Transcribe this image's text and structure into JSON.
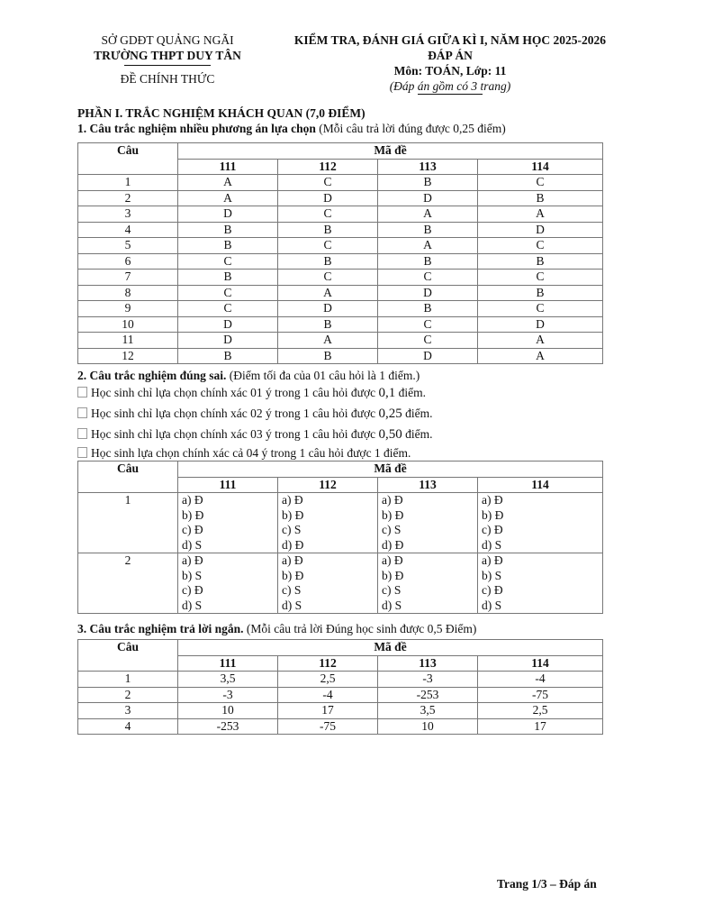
{
  "header": {
    "left": [
      "SỞ GDĐT QUẢNG NGÃI",
      "TRƯỜNG THPT DUY TÂN",
      "ĐỀ CHÍNH THỨC"
    ],
    "right": [
      "KIỂM TRA, ĐÁNH GIÁ GIỮA KÌ I, NĂM HỌC 2025-2026",
      "ĐÁP ÁN",
      "Môn: TOÁN,  Lớp: 11",
      "(Đáp án gồm có 3 trang)"
    ]
  },
  "part1_title": "PHẦN I. TRẮC NGHIỆM KHÁCH QUAN (7,0 ĐIỂM)",
  "section1": {
    "title": "1.  Câu trắc nghiệm nhiều phương án lựa chọn",
    "note": " (Mỗi câu trả lời đúng được 0,25 điểm)"
  },
  "col_cau": "Câu",
  "col_made": "Mã đề",
  "codes": [
    "111",
    "112",
    "113",
    "114"
  ],
  "table1": [
    [
      "1",
      "A",
      "C",
      "B",
      "C"
    ],
    [
      "2",
      "A",
      "D",
      "D",
      "B"
    ],
    [
      "3",
      "D",
      "C",
      "A",
      "A"
    ],
    [
      "4",
      "B",
      "B",
      "B",
      "D"
    ],
    [
      "5",
      "B",
      "C",
      "A",
      "C"
    ],
    [
      "6",
      "C",
      "B",
      "B",
      "B"
    ],
    [
      "7",
      "B",
      "C",
      "C",
      "C"
    ],
    [
      "8",
      "C",
      "A",
      "D",
      "B"
    ],
    [
      "9",
      "C",
      "D",
      "B",
      "C"
    ],
    [
      "10",
      "D",
      "B",
      "C",
      "D"
    ],
    [
      "11",
      "D",
      "A",
      "C",
      "A"
    ],
    [
      "12",
      "B",
      "B",
      "D",
      "A"
    ]
  ],
  "section2": {
    "title": "2.  Câu trắc nghiệm đúng sai.",
    "note": " (Điểm tối đa của 01 câu hỏi là 1 điểm.)",
    "rules": [
      {
        "text": "Học sinh chỉ lựa chọn chính xác 01 ý trong 1 câu hỏi được ",
        "value": "0,1",
        "suffix": " điểm."
      },
      {
        "text": "Học sinh chỉ lựa chọn chính xác 02 ý trong 1 câu hỏi được ",
        "value": "0,25",
        "suffix": " điểm."
      },
      {
        "text": "Học sinh chỉ lựa chọn chính xác 03 ý trong 1 câu hỏi được ",
        "value": "0,50",
        "suffix": " điểm."
      },
      {
        "text": "Học sinh lựa chọn chính xác cả 04 ý trong 1 câu hỏi được 1 điểm.",
        "value": "",
        "suffix": ""
      }
    ]
  },
  "table2": [
    {
      "cau": "1",
      "answers": [
        [
          "a) Đ",
          "b) Đ",
          "c) Đ",
          "d) S"
        ],
        [
          "a) Đ",
          "b) Đ",
          "c) S",
          "d) Đ"
        ],
        [
          "a) Đ",
          "b) Đ",
          "c) S",
          "d) Đ"
        ],
        [
          "a) Đ",
          "b) Đ",
          "c) Đ",
          "d) S"
        ]
      ]
    },
    {
      "cau": "2",
      "answers": [
        [
          "a) Đ",
          "b) S",
          "c) Đ",
          "d) S"
        ],
        [
          "a) Đ",
          "b) Đ",
          "c) S",
          "d) S"
        ],
        [
          "a) Đ",
          "b) Đ",
          "c) S",
          "d) S"
        ],
        [
          "a) Đ",
          "b) S",
          "c) Đ",
          "d) S"
        ]
      ]
    }
  ],
  "section3": {
    "title": "3. Câu trắc nghiệm trả lời ngắn.",
    "note": " (Mỗi câu trả lời Đúng học sinh được 0,5 Điểm)"
  },
  "table3": [
    [
      "1",
      "3,5",
      "2,5",
      "-3",
      "-4"
    ],
    [
      "2",
      "-3",
      "-4",
      "-253",
      "-75"
    ],
    [
      "3",
      "10",
      "17",
      "3,5",
      "2,5"
    ],
    [
      "4",
      "-253",
      "-75",
      "10",
      "17"
    ]
  ],
  "footer": "Trang 1/3 – Đáp án"
}
